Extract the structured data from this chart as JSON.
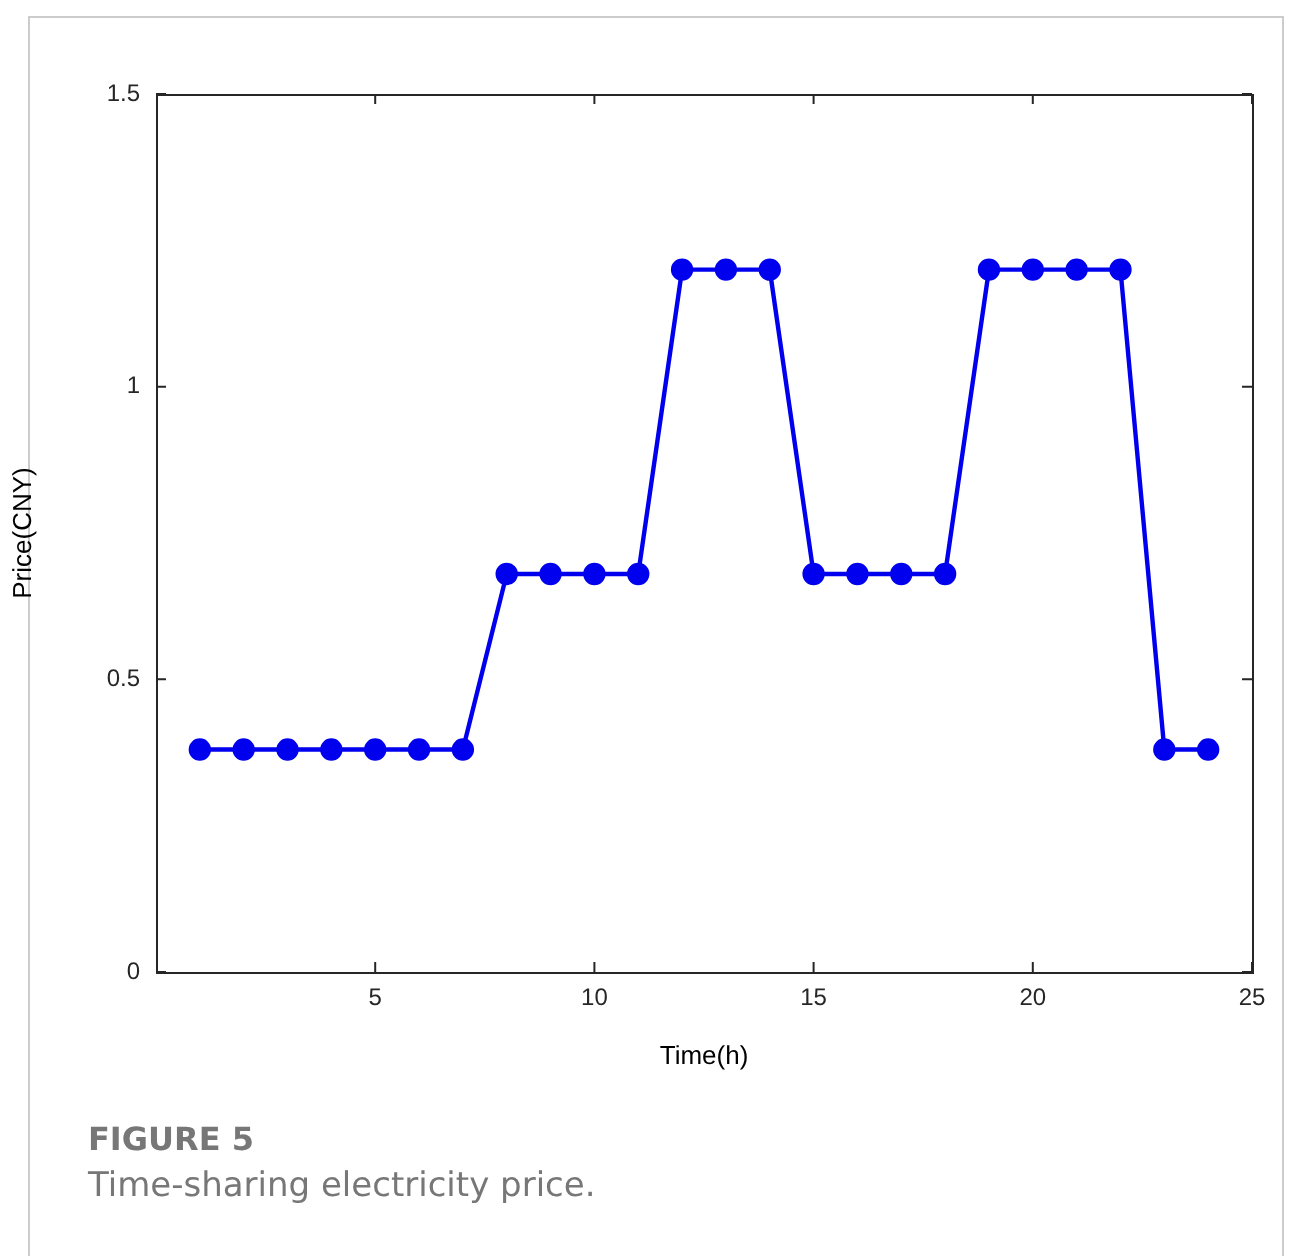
{
  "chart_data": {
    "type": "line",
    "xlabel": "Time(h)",
    "ylabel": "Price(CNY)",
    "x": [
      1,
      2,
      3,
      4,
      5,
      6,
      7,
      8,
      9,
      10,
      11,
      12,
      13,
      14,
      15,
      16,
      17,
      18,
      19,
      20,
      21,
      22,
      23,
      24
    ],
    "series": [
      {
        "color": "#0000ee",
        "values": [
          0.38,
          0.38,
          0.38,
          0.38,
          0.38,
          0.38,
          0.38,
          0.68,
          0.68,
          0.68,
          0.68,
          1.2,
          1.2,
          1.2,
          0.68,
          0.68,
          0.68,
          0.68,
          1.2,
          1.2,
          1.2,
          1.2,
          0.38,
          0.38
        ]
      }
    ],
    "xlim": [
      0,
      25
    ],
    "xticks": [
      5,
      10,
      15,
      20,
      25
    ],
    "ylim": [
      0,
      1.5
    ],
    "yticks": [
      0,
      0.5,
      1,
      1.5
    ],
    "marker": "circle",
    "line_style": "solid",
    "legend": false,
    "annotations": [
      "FIGURE 5",
      "Time-sharing electricity price."
    ]
  }
}
